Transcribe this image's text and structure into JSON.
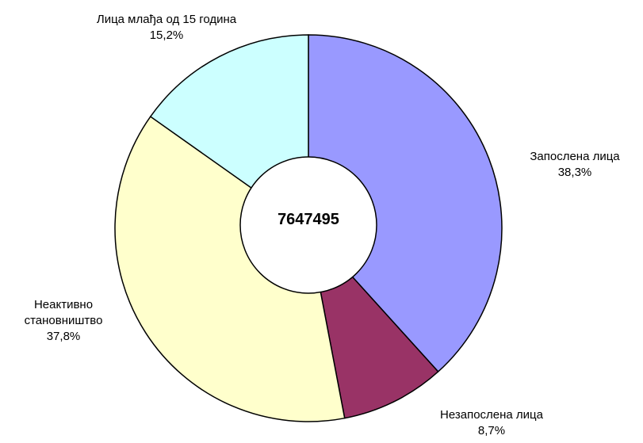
{
  "chart_data": {
    "type": "donut",
    "center_label": "7647495",
    "categories": [
      "Запослена лица",
      "Незапослена лица",
      "Неактивно становништво",
      "Лица млађа од 15 година"
    ],
    "values": [
      38.3,
      8.7,
      37.8,
      15.2
    ],
    "value_labels": [
      "38,3%",
      "8,7%",
      "37,8%",
      "15,2%"
    ],
    "colors": [
      "#9999ff",
      "#993366",
      "#ffffcc",
      "#ccffff"
    ]
  }
}
